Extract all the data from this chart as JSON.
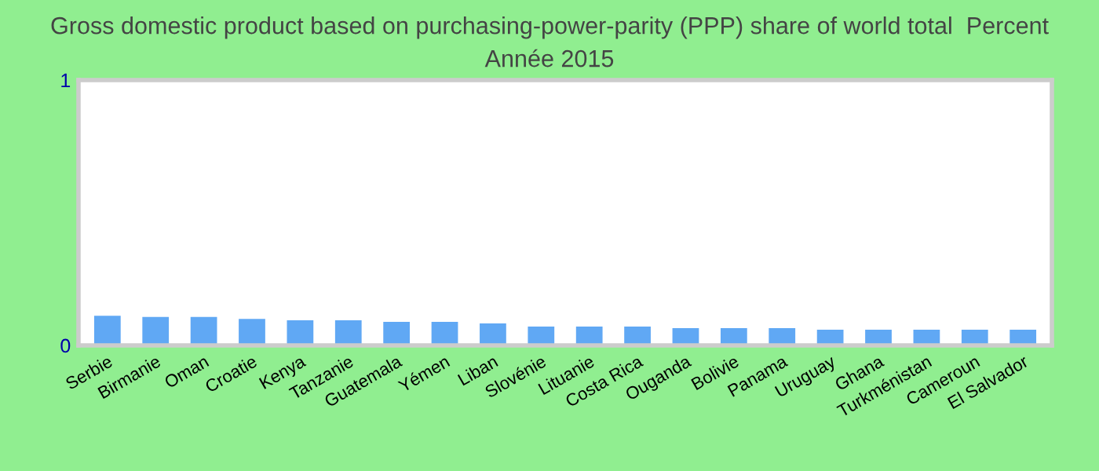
{
  "chart_data": {
    "type": "bar",
    "title": "Gross domestic product based on purchasing-power-parity (PPP) share of world total  Percent",
    "subtitle": "Année 2015",
    "categories": [
      "Serbie",
      "Birmanie",
      "Oman",
      "Croatie",
      "Kenya",
      "Tanzanie",
      "Guatemala",
      "Yémen",
      "Liban",
      "Slovénie",
      "Lituanie",
      "Costa Rica",
      "Ouganda",
      "Bolivie",
      "Panama",
      "Uruguay",
      "Ghana",
      "Turkménistan",
      "Cameroun",
      "El Salvador"
    ],
    "values": [
      0.112,
      0.107,
      0.107,
      0.1,
      0.095,
      0.095,
      0.089,
      0.089,
      0.083,
      0.071,
      0.071,
      0.071,
      0.065,
      0.065,
      0.065,
      0.059,
      0.059,
      0.059,
      0.059,
      0.059
    ],
    "color": "#60a8f4",
    "ylim": [
      0,
      1
    ],
    "yticks": [
      0,
      1
    ],
    "grid": false
  }
}
